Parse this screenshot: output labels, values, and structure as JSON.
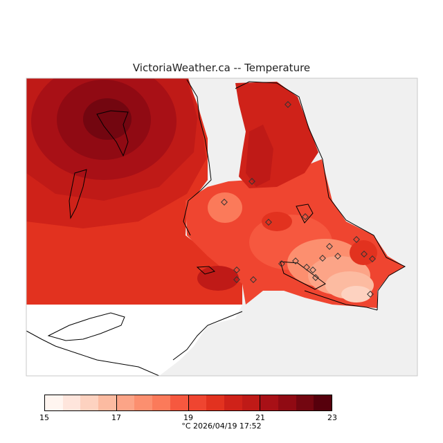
{
  "title": "VictoriaWeather.ca -- Temperature",
  "colorbar": {
    "min": 15,
    "max": 23,
    "tick_labels": [
      "15",
      "17",
      "19",
      "21",
      "23"
    ],
    "colors": [
      "#fff5f0",
      "#fee5dc",
      "#fdd2c0",
      "#fcbba1",
      "#fca487",
      "#fc8f6f",
      "#fb7a5a",
      "#f6583f",
      "#ef4530",
      "#e2321f",
      "#cf2219",
      "#bf1a17",
      "#a81016",
      "#900a13",
      "#730610",
      "#56000c"
    ]
  },
  "timestamp": "°C  2026/04/19 17:52",
  "map": {
    "land_color": "#f0f0f0",
    "sea_color": "#ffffff",
    "station_count": 20
  }
}
